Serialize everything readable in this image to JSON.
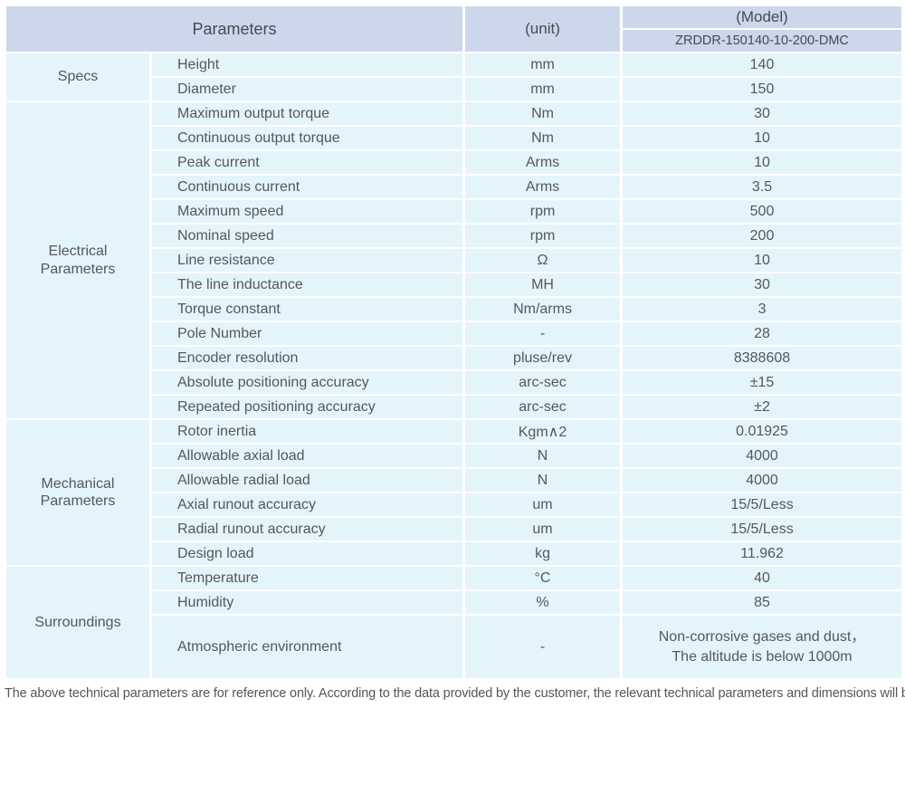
{
  "header": {
    "parameters_label": "Parameters",
    "unit_label": "(unit)",
    "model_label": "(Model)",
    "model_number": "ZRDDR-150140-10-200-DMC"
  },
  "groups": [
    {
      "label": "Specs",
      "rows": [
        {
          "param": "Height",
          "unit": "mm",
          "value": "140"
        },
        {
          "param": "Diameter",
          "unit": "mm",
          "value": "150"
        }
      ]
    },
    {
      "label": "Electrical\nParameters",
      "rows": [
        {
          "param": "Maximum output torque",
          "unit": "Nm",
          "value": "30"
        },
        {
          "param": "Continuous output torque",
          "unit": "Nm",
          "value": "10"
        },
        {
          "param": "Peak current",
          "unit": "Arms",
          "value": "10"
        },
        {
          "param": "Continuous current",
          "unit": "Arms",
          "value": "3.5"
        },
        {
          "param": "Maximum speed",
          "unit": "rpm",
          "value": "500"
        },
        {
          "param": "Nominal speed",
          "unit": "rpm",
          "value": "200"
        },
        {
          "param": "Line resistance",
          "unit": "Ω",
          "value": "10"
        },
        {
          "param": "The line inductance",
          "unit": "MH",
          "value": "30"
        },
        {
          "param": "Torque constant",
          "unit": "Nm/arms",
          "value": "3"
        },
        {
          "param": "Pole Number",
          "unit": "-",
          "value": "28"
        },
        {
          "param": "Encoder resolution",
          "unit": "pluse/rev",
          "value": "8388608"
        },
        {
          "param": "Absolute positioning accuracy",
          "unit": "arc-sec",
          "value": "±15"
        },
        {
          "param": "Repeated positioning accuracy",
          "unit": "arc-sec",
          "value": "±2"
        }
      ]
    },
    {
      "label": "Mechanical\nParameters",
      "rows": [
        {
          "param": "Rotor inertia",
          "unit": "Kgm∧2",
          "value": "0.01925"
        },
        {
          "param": "Allowable axial load",
          "unit": "N",
          "value": "4000"
        },
        {
          "param": "Allowable radial load",
          "unit": "N",
          "value": "4000"
        },
        {
          "param": "Axial runout accuracy",
          "unit": "um",
          "value": "15/5/Less"
        },
        {
          "param": "Radial runout accuracy",
          "unit": "um",
          "value": "15/5/Less"
        },
        {
          "param": "Design load",
          "unit": "kg",
          "value": "11.962"
        }
      ]
    },
    {
      "label": "Surroundings",
      "rows": [
        {
          "param": "Temperature",
          "unit": "°C",
          "value": "40"
        },
        {
          "param": "Humidity",
          "unit": "%",
          "value": "85"
        },
        {
          "param": "Atmospheric environment",
          "unit": "-",
          "value": "Non-corrosive gases and dust，\nThe altitude is below 1000m"
        }
      ]
    }
  ],
  "footer": {
    "note": "The above technical parameters are for reference only. According to the data provided by the customer, the relevant technical parameters and dimensions will be issued."
  },
  "colors": {
    "header_bg": "#cdd7ec",
    "row_bg": "#e4f4fb",
    "divider": "#ffffff",
    "text": "#53585e",
    "header_text": "#454b52",
    "footer_text": "#565656"
  }
}
